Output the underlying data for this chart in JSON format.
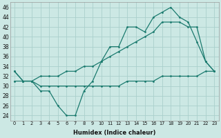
{
  "xlabel": "Humidex (Indice chaleur)",
  "bg_color": "#cce8e4",
  "grid_color": "#aacfcc",
  "line_color": "#1a7a6e",
  "xlim": [
    -0.5,
    23.5
  ],
  "ylim": [
    23,
    47
  ],
  "yticks": [
    24,
    26,
    28,
    30,
    32,
    34,
    36,
    38,
    40,
    42,
    44,
    46
  ],
  "xticks": [
    0,
    1,
    2,
    3,
    4,
    5,
    6,
    7,
    8,
    9,
    10,
    11,
    12,
    13,
    14,
    15,
    16,
    17,
    18,
    19,
    20,
    21,
    22,
    23
  ],
  "line1": [
    33,
    31,
    31,
    29,
    29,
    26,
    24,
    24,
    29,
    31,
    35,
    38,
    38,
    42,
    42,
    41,
    44,
    45,
    46,
    44,
    43,
    39,
    35,
    33
  ],
  "line2": [
    33,
    31,
    31,
    32,
    32,
    32,
    33,
    33,
    34,
    34,
    35,
    36,
    37,
    38,
    39,
    40,
    41,
    43,
    43,
    43,
    42,
    42,
    35,
    33
  ],
  "line3": [
    31,
    31,
    31,
    30,
    30,
    30,
    30,
    30,
    30,
    30,
    30,
    30,
    30,
    31,
    31,
    31,
    31,
    32,
    32,
    32,
    32,
    32,
    33,
    33
  ]
}
